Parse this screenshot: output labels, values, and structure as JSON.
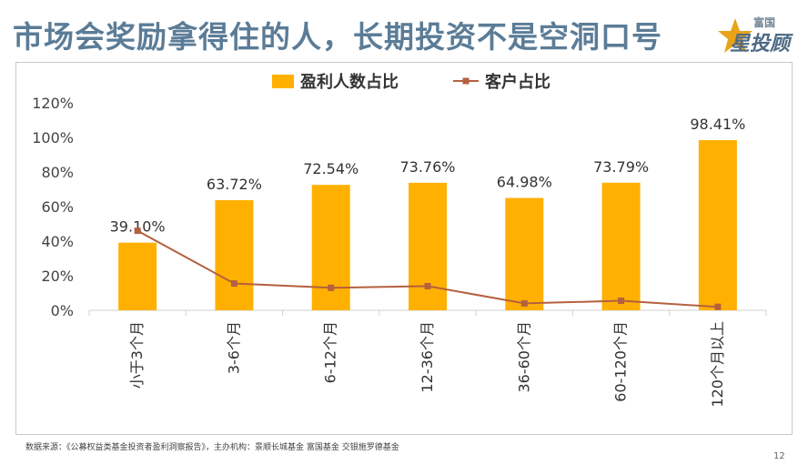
{
  "title": "市场会奖励拿得住的人，长期投资不是空洞口号",
  "logo": {
    "brand_small": "富国",
    "brand_big": "投顾",
    "brand_star_char": "星"
  },
  "source": "数据来源：《公募权益类基金投资者盈利洞察报告》，主办机构：景顺长城基金 富国基金 交银施罗德基金",
  "page_number": "12",
  "colors": {
    "bar": "#ffb000",
    "line": "#b5603f",
    "title": "#5b7c97",
    "axis": "#d0d0d0"
  },
  "chart_data": {
    "type": "bar",
    "categories": [
      "小于3个月",
      "3-6个月",
      "6-12个月",
      "12-36个月",
      "36-60个月",
      "60-120个月",
      "120个月以上"
    ],
    "series": [
      {
        "name": "盈利人数占比",
        "type": "bar",
        "values": [
          39.1,
          63.72,
          72.54,
          73.76,
          64.98,
          73.79,
          98.41
        ],
        "data_labels": [
          "39.10%",
          "63.72%",
          "72.54%",
          "73.76%",
          "64.98%",
          "73.79%",
          "98.41%"
        ]
      },
      {
        "name": "客户占比",
        "type": "line",
        "values": [
          46,
          15.5,
          13,
          14,
          4,
          5.5,
          2
        ]
      }
    ],
    "y_ticks": [
      "0%",
      "20%",
      "40%",
      "60%",
      "80%",
      "100%",
      "120%"
    ],
    "ylim": [
      0,
      120
    ],
    "legend_position": "top-center",
    "grid": false
  }
}
